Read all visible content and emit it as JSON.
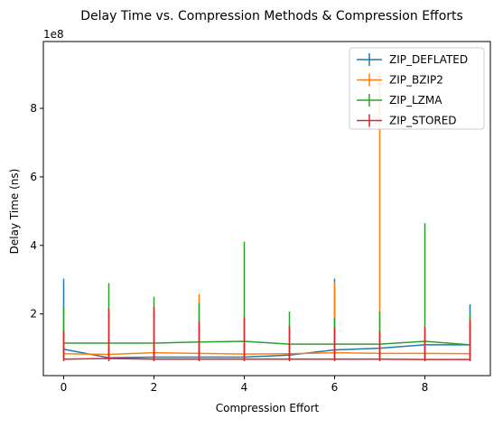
{
  "chart_data": {
    "type": "line",
    "title": "Delay Time vs. Compression Methods & Compression Efforts",
    "xlabel": "Compression Effort",
    "ylabel": "Delay Time (ns)",
    "y_offset_label": "1e8",
    "x": [
      0,
      1,
      2,
      3,
      4,
      5,
      6,
      7,
      8,
      9
    ],
    "xlim": [
      -0.45,
      9.45
    ],
    "ylim": [
      20000000,
      995000000
    ],
    "xticks": [
      0,
      2,
      4,
      6,
      8
    ],
    "yticks": [
      200000000,
      400000000,
      600000000,
      800000000
    ],
    "ytick_labels": [
      "2",
      "4",
      "6",
      "8"
    ],
    "legend_position": "top-right",
    "series": [
      {
        "name": "ZIP_DEFLATED",
        "color": "#1f77b4",
        "values": [
          97000000,
          72000000,
          74000000,
          74000000,
          74000000,
          80000000,
          95000000,
          100000000,
          110000000,
          110000000
        ],
        "err_low": [
          70000000,
          70000000,
          70000000,
          70000000,
          70000000,
          70000000,
          70000000,
          70000000,
          70000000,
          70000000
        ],
        "err_high": [
          303000000,
          110000000,
          110000000,
          110000000,
          110000000,
          110000000,
          303000000,
          110000000,
          110000000,
          228000000
        ]
      },
      {
        "name": "ZIP_BZIP2",
        "color": "#ff7f0e",
        "values": [
          84000000,
          82000000,
          87000000,
          85000000,
          83000000,
          84000000,
          87000000,
          85000000,
          85000000,
          84000000
        ],
        "err_low": [
          70000000,
          70000000,
          70000000,
          70000000,
          70000000,
          70000000,
          70000000,
          70000000,
          70000000,
          70000000
        ],
        "err_high": [
          110000000,
          110000000,
          110000000,
          258000000,
          110000000,
          110000000,
          293000000,
          905000000,
          110000000,
          110000000
        ]
      },
      {
        "name": "ZIP_LZMA",
        "color": "#2ca02c",
        "values": [
          115000000,
          115000000,
          115000000,
          118000000,
          120000000,
          112000000,
          112000000,
          112000000,
          120000000,
          110000000
        ],
        "err_low": [
          70000000,
          70000000,
          70000000,
          70000000,
          70000000,
          70000000,
          70000000,
          70000000,
          70000000,
          70000000
        ],
        "err_high": [
          220000000,
          290000000,
          250000000,
          232000000,
          411000000,
          207000000,
          188000000,
          207000000,
          465000000,
          200000000
        ]
      },
      {
        "name": "ZIP_STORED",
        "color": "#d62728",
        "values": [
          68000000,
          70000000,
          68000000,
          68000000,
          68000000,
          68000000,
          68000000,
          68000000,
          67000000,
          67000000
        ],
        "err_low": [
          62000000,
          62000000,
          62000000,
          62000000,
          62000000,
          62000000,
          62000000,
          62000000,
          62000000,
          62000000
        ],
        "err_high": [
          150000000,
          217000000,
          220000000,
          178000000,
          190000000,
          165000000,
          160000000,
          150000000,
          162000000,
          183000000
        ]
      }
    ]
  }
}
